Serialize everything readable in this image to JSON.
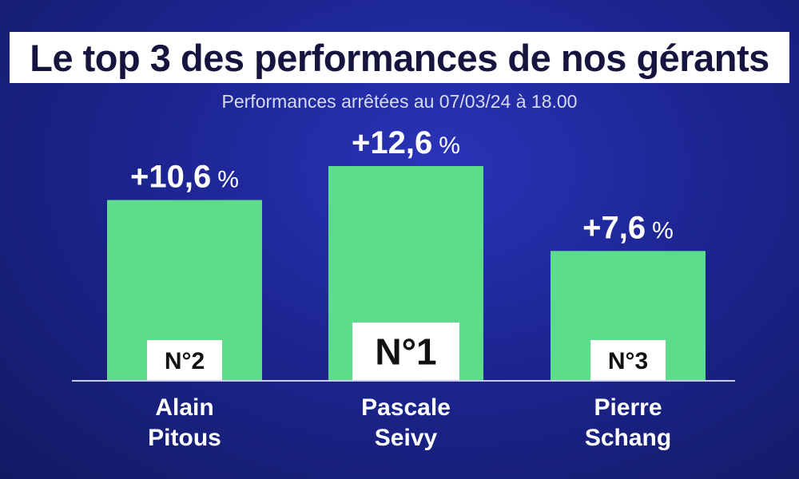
{
  "header": {
    "title": "Le top 3 des performances de nos gérants",
    "subtitle": "Performances arrêtées au 07/03/24 à 18.00"
  },
  "colors": {
    "bar": "#5ddc8c",
    "background": "#1c2590",
    "rank_box": "#ffffff",
    "text": "#ffffff"
  },
  "chart_data": {
    "type": "bar",
    "title": "Le top 3 des performances de nos gérants",
    "subtitle": "Performances arrêtées au 07/03/24 à 18.00",
    "categories": [
      [
        "Alain",
        "Pitous"
      ],
      [
        "Pascale",
        "Seivy"
      ],
      [
        "Pierre",
        "Schang"
      ]
    ],
    "values": [
      10.6,
      12.6,
      7.6
    ],
    "value_labels": [
      "+10,6",
      "+12,6",
      "+7,6"
    ],
    "unit": "%",
    "ranks": [
      "N°2",
      "N°1",
      "N°3"
    ],
    "xlabel": "",
    "ylabel": "",
    "ylim": [
      0,
      12.6
    ],
    "grid": false,
    "legend": "none"
  }
}
